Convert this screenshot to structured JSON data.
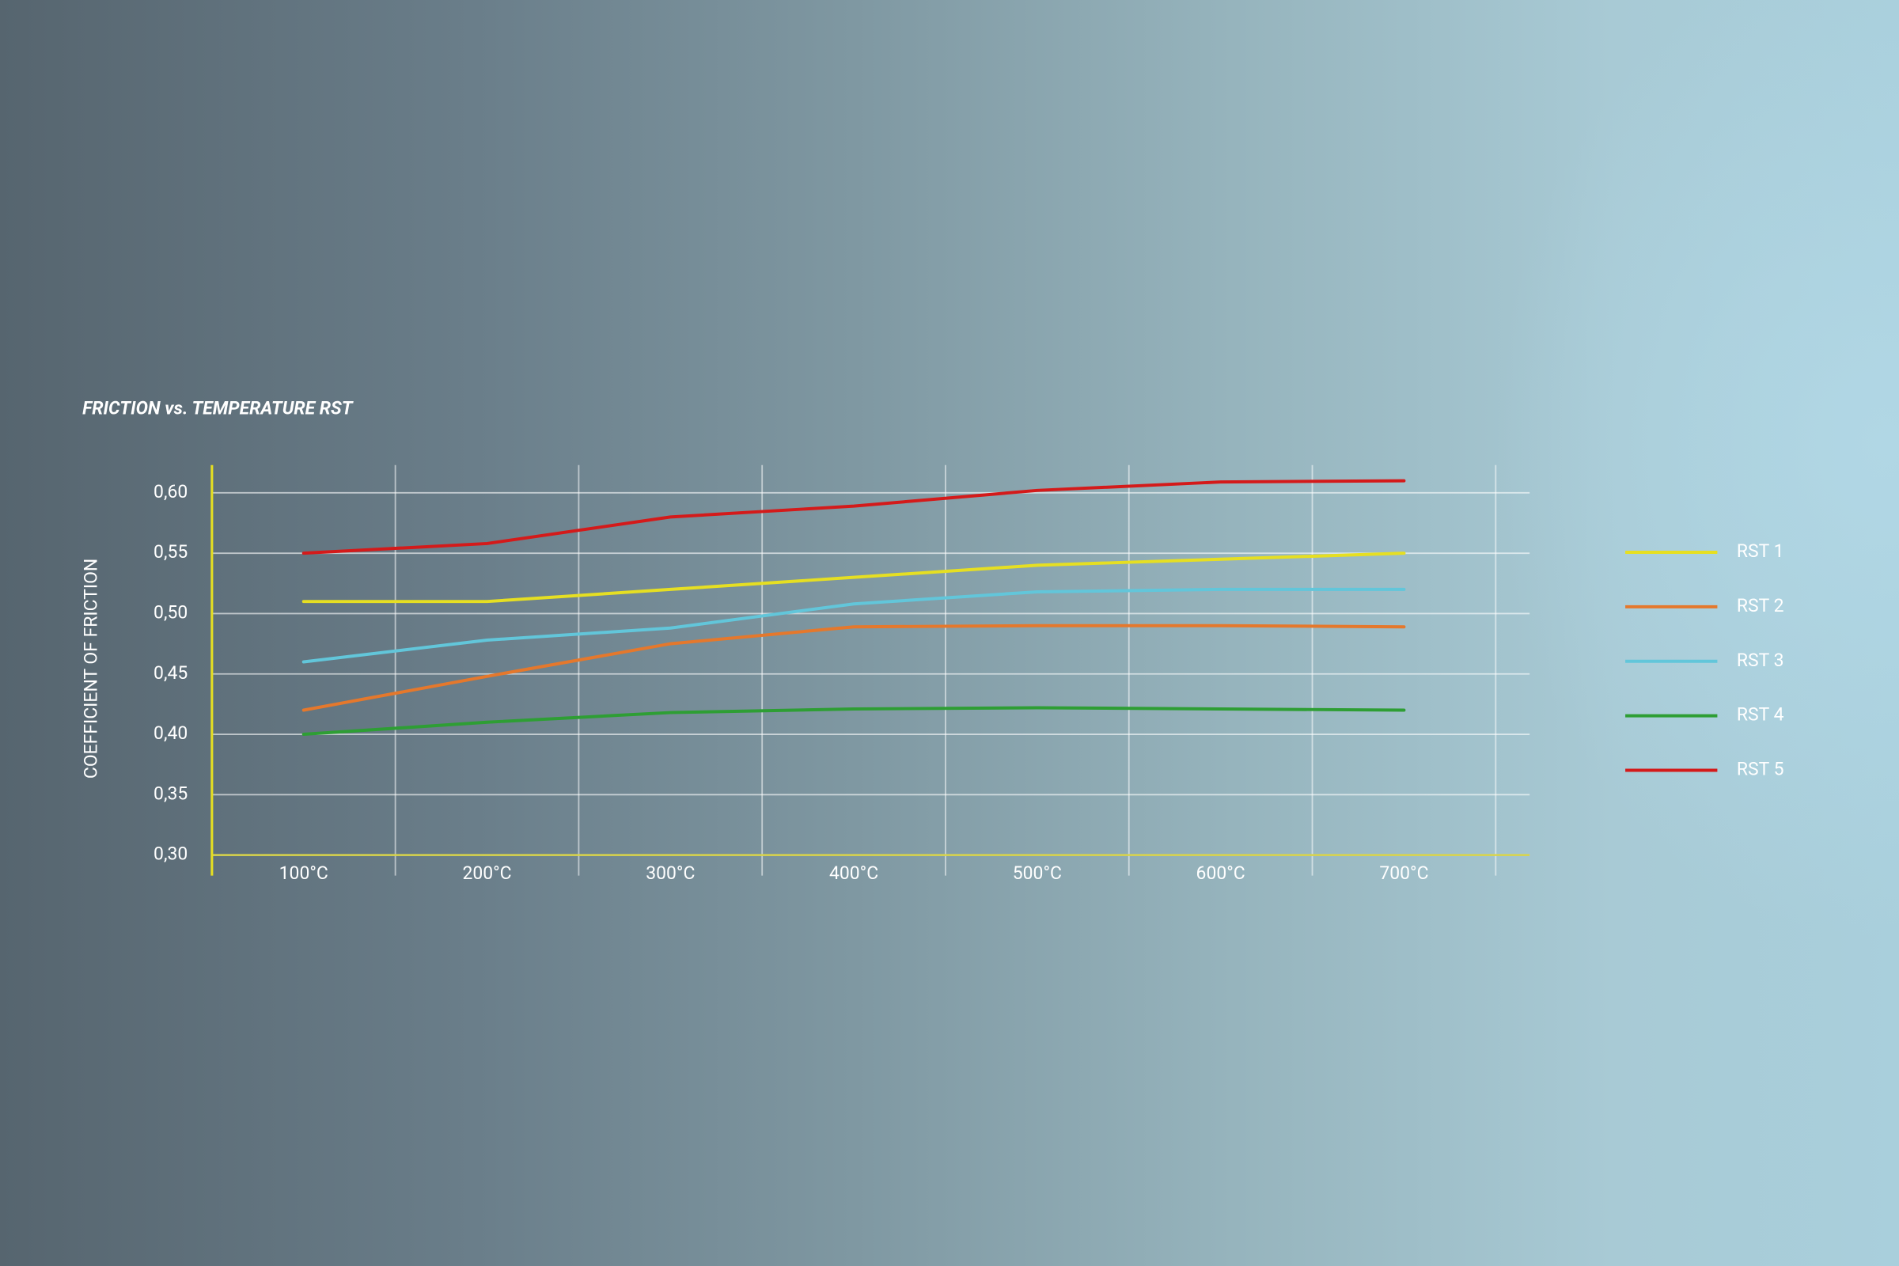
{
  "chart_data": {
    "type": "line",
    "title": "FRICTION vs. TEMPERATURE RST",
    "y_label": "COEFFICIENT OF FRICTION",
    "categories": [
      "100°C",
      "200°C",
      "300°C",
      "400°C",
      "500°C",
      "600°C",
      "700°C"
    ],
    "series": [
      {
        "name": "RST 1",
        "color": "#e6df22",
        "values": [
          0.51,
          0.51,
          0.52,
          0.53,
          0.54,
          0.545,
          0.55
        ]
      },
      {
        "name": "RST 2",
        "color": "#e5782c",
        "values": [
          0.42,
          0.448,
          0.475,
          0.489,
          0.49,
          0.49,
          0.489
        ]
      },
      {
        "name": "RST 3",
        "color": "#62c6da",
        "values": [
          0.46,
          0.478,
          0.488,
          0.508,
          0.518,
          0.52,
          0.52
        ]
      },
      {
        "name": "RST 4",
        "color": "#2e9e34",
        "values": [
          0.4,
          0.41,
          0.418,
          0.421,
          0.422,
          0.421,
          0.42
        ]
      },
      {
        "name": "RST 5",
        "color": "#d41a1a",
        "values": [
          0.55,
          0.558,
          0.58,
          0.589,
          0.602,
          0.609,
          0.61
        ]
      }
    ],
    "ylim": [
      0.3,
      0.623
    ],
    "yticks": [
      {
        "value": 0.3,
        "label": "0,30"
      },
      {
        "value": 0.35,
        "label": "0,35"
      },
      {
        "value": 0.4,
        "label": "0,40"
      },
      {
        "value": 0.45,
        "label": "0,45"
      },
      {
        "value": 0.5,
        "label": "0,50"
      },
      {
        "value": 0.55,
        "label": "0,55"
      },
      {
        "value": 0.6,
        "label": "0,60"
      }
    ],
    "grid": true,
    "legend": "right"
  }
}
